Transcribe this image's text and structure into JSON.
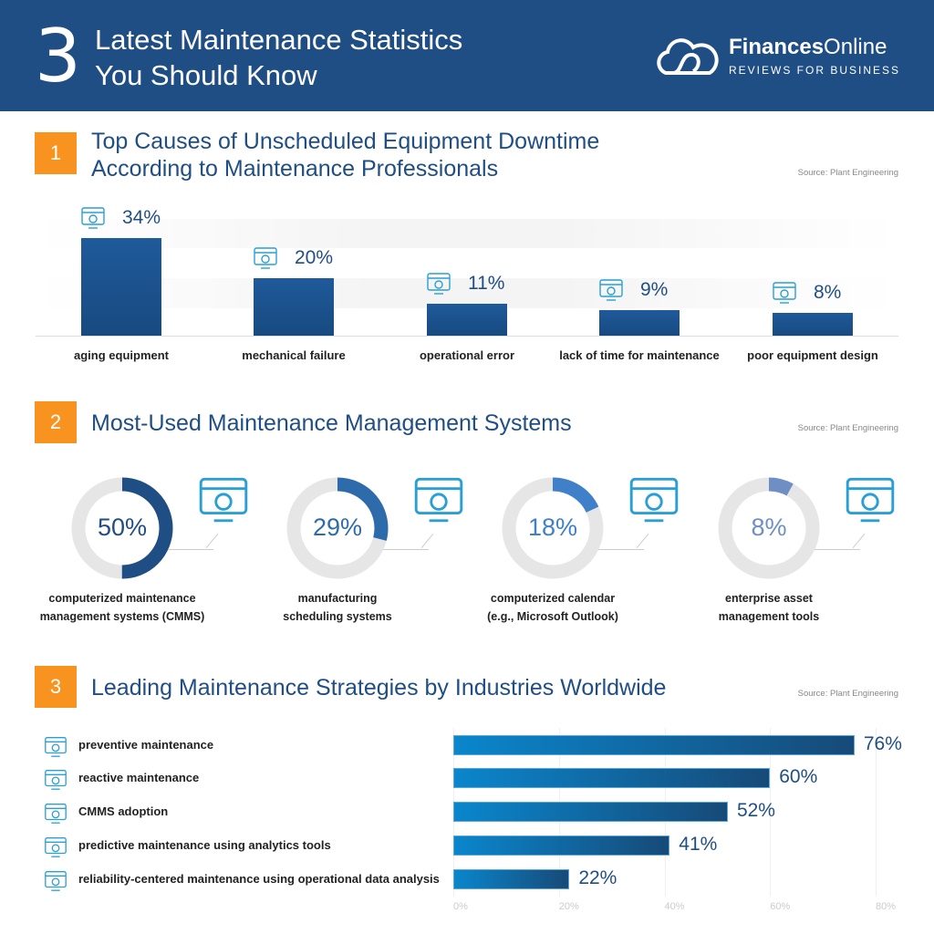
{
  "header": {
    "number": "3",
    "title_line1": "Latest Maintenance Statistics",
    "title_line2": "You Should Know",
    "logo_name_bold": "Finances",
    "logo_name_light": "Online",
    "logo_tagline": "REVIEWS FOR BUSINESS"
  },
  "colors": {
    "header": "#1f4e85",
    "badge": "#f7931e",
    "title": "#1f4e85",
    "icon": "#2a9fd6"
  },
  "chart_data": [
    {
      "type": "bar",
      "number": "1",
      "title_line1": "Top Causes of Unscheduled Equipment Downtime",
      "title_line2": "According to Maintenance Professionals",
      "source": "Source: Plant Engineering",
      "categories": [
        "aging equipment",
        "mechanical failure",
        "operational error",
        "lack of time for maintenance",
        "poor equipment design"
      ],
      "values": [
        34,
        20,
        11,
        9,
        8
      ],
      "labels": [
        "34%",
        "20%",
        "11%",
        "9%",
        "8%"
      ],
      "icons": [
        "machine-icon",
        "gears-icon",
        "sliders-icon",
        "clock-icon",
        "equipment-design-icon"
      ]
    },
    {
      "type": "pie",
      "number": "2",
      "title": "Most-Used Maintenance Management Systems",
      "source": "Source: Plant Engineering",
      "categories": [
        [
          "computerized maintenance",
          "management systems (CMMS)"
        ],
        [
          "manufacturing",
          "scheduling systems"
        ],
        [
          "computerized calendar",
          "(e.g., Microsoft Outlook)"
        ],
        [
          "enterprise asset",
          "management tools"
        ]
      ],
      "values": [
        50,
        29,
        18,
        8
      ],
      "labels": [
        "50%",
        "29%",
        "18%",
        "8%"
      ],
      "ring_colors": [
        "#1f4e85",
        "#2e6bab",
        "#3f80c8",
        "#6f8fc4"
      ],
      "icons": [
        "browser-gear-icon",
        "calendar-wrench-icon",
        "monitor-calendar-icon",
        "asset-management-icon"
      ]
    },
    {
      "type": "bar",
      "orientation": "horizontal",
      "number": "3",
      "title": "Leading Maintenance Strategies by Industries Worldwide",
      "source": "Source: Plant Engineering",
      "categories": [
        "preventive maintenance",
        "reactive maintenance",
        "CMMS adoption",
        "predictive maintenance using analytics tools",
        "reliability-centered maintenance using operational data analysis"
      ],
      "values": [
        76,
        60,
        52,
        41,
        22
      ],
      "labels": [
        "76%",
        "60%",
        "52%",
        "41%",
        "22%"
      ],
      "xlim": [
        0,
        80
      ],
      "xticks": [
        "0%",
        "20%",
        "40%",
        "60%",
        "80%"
      ],
      "grid": true,
      "icons": [
        "calendar-icon",
        "worker-icon",
        "cmms-icon",
        "analytics-icon",
        "tools-icon"
      ]
    }
  ]
}
